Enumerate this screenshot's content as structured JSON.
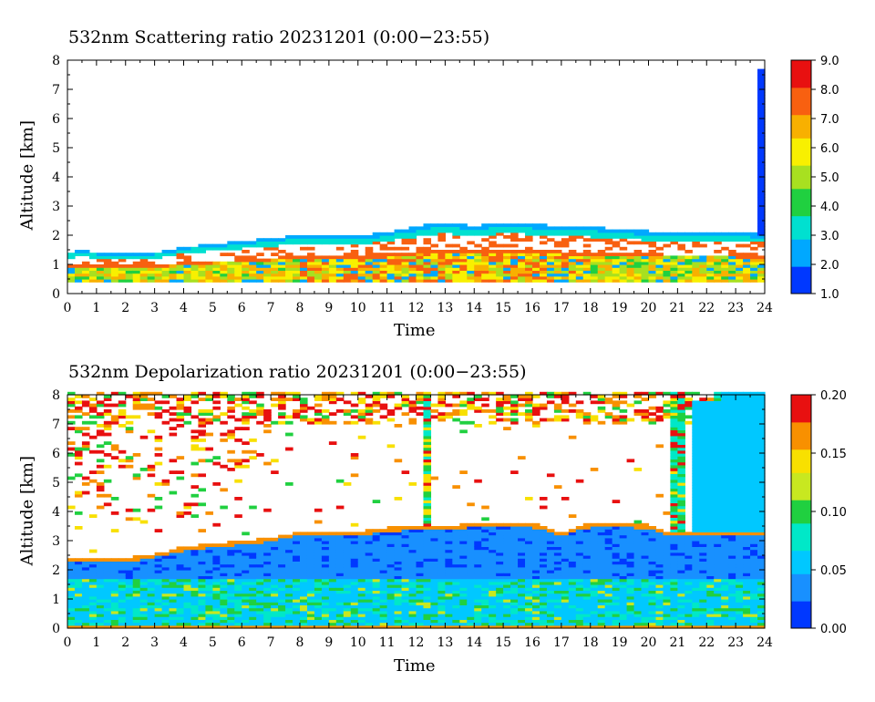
{
  "panels": [
    {
      "title": "532nm Scattering ratio  20231201 (0:00−23:55)",
      "xlabel": "Time",
      "ylabel": "Altitude [km]"
    },
    {
      "title": "532nm Depolarization ratio  20231201 (0:00−23:55)",
      "xlabel": "Time",
      "ylabel": "Altitude [km]"
    }
  ],
  "chart_data": [
    {
      "type": "heatmap",
      "title": "532nm Scattering ratio  20231201 (0:00−23:55)",
      "xlabel": "Time",
      "ylabel": "Altitude [km]",
      "xlim": [
        0,
        24
      ],
      "ylim": [
        0,
        8
      ],
      "xticks": [
        "0",
        "1",
        "2",
        "3",
        "4",
        "5",
        "6",
        "7",
        "8",
        "9",
        "10",
        "11",
        "12",
        "13",
        "14",
        "15",
        "16",
        "17",
        "18",
        "19",
        "20",
        "21",
        "22",
        "23",
        "24"
      ],
      "yticks": [
        "0",
        "1",
        "2",
        "3",
        "4",
        "5",
        "6",
        "7",
        "8"
      ],
      "colorbar": {
        "min": 1.0,
        "max": 9.0,
        "ticks": [
          "1.0",
          "2.0",
          "3.0",
          "4.0",
          "5.0",
          "6.0",
          "7.0",
          "8.0",
          "9.0"
        ]
      },
      "colors": [
        "#0038ff",
        "#00a8ff",
        "#00e0d0",
        "#20d040",
        "#a8e020",
        "#f8f000",
        "#f8b000",
        "#f86010",
        "#e81010"
      ],
      "features": {
        "cloud_top_km": [
          [
            0,
            1.4
          ],
          [
            0.5,
            1.5
          ],
          [
            1,
            1.4
          ],
          [
            3,
            1.4
          ],
          [
            4,
            1.6
          ],
          [
            6,
            1.8
          ],
          [
            8,
            2.0
          ],
          [
            10,
            2.0
          ],
          [
            11,
            2.1
          ],
          [
            12,
            2.3
          ],
          [
            13,
            2.45
          ],
          [
            14,
            2.3
          ],
          [
            15,
            2.45
          ],
          [
            16,
            2.4
          ],
          [
            17,
            2.3
          ],
          [
            18,
            2.3
          ],
          [
            19,
            2.2
          ],
          [
            20,
            2.15
          ],
          [
            21,
            2.1
          ],
          [
            22,
            2.1
          ],
          [
            23,
            2.1
          ],
          [
            23.8,
            2.05
          ]
        ],
        "layer_bottom_km": 0.4,
        "late_column": {
          "time": 23.85,
          "top_km": 7.7
        }
      }
    },
    {
      "type": "heatmap",
      "title": "532nm Depolarization ratio  20231201 (0:00−23:55)",
      "xlabel": "Time",
      "ylabel": "Altitude [km]",
      "xlim": [
        0,
        24
      ],
      "ylim": [
        0,
        8
      ],
      "xticks": [
        "0",
        "1",
        "2",
        "3",
        "4",
        "5",
        "6",
        "7",
        "8",
        "9",
        "10",
        "11",
        "12",
        "13",
        "14",
        "15",
        "16",
        "17",
        "18",
        "19",
        "20",
        "21",
        "22",
        "23",
        "24"
      ],
      "yticks": [
        "0",
        "1",
        "2",
        "3",
        "4",
        "5",
        "6",
        "7",
        "8"
      ],
      "colorbar": {
        "min": 0.0,
        "max": 0.2,
        "ticks": [
          "0.00",
          "0.05",
          "0.10",
          "0.15",
          "0.20"
        ]
      },
      "colors": [
        "#0038ff",
        "#1890ff",
        "#00c8ff",
        "#00e8c8",
        "#20d040",
        "#c8e820",
        "#f8e000",
        "#f89000",
        "#e81010"
      ],
      "features": {
        "layer_top_km": [
          [
            0,
            2.4
          ],
          [
            1,
            2.4
          ],
          [
            2,
            2.4
          ],
          [
            3,
            2.55
          ],
          [
            4,
            2.8
          ],
          [
            5,
            2.9
          ],
          [
            6,
            3.0
          ],
          [
            7,
            3.1
          ],
          [
            8,
            3.3
          ],
          [
            9,
            3.35
          ],
          [
            10,
            3.3
          ],
          [
            11,
            3.45
          ],
          [
            12,
            3.5
          ],
          [
            13,
            3.5
          ],
          [
            14,
            3.6
          ],
          [
            15,
            3.6
          ],
          [
            16,
            3.6
          ],
          [
            17,
            3.3
          ],
          [
            18,
            3.6
          ],
          [
            19,
            3.6
          ],
          [
            20,
            3.55
          ],
          [
            20.6,
            3.3
          ],
          [
            21,
            3.3
          ],
          [
            22,
            3.3
          ],
          [
            23,
            3.3
          ],
          [
            24,
            3.3
          ]
        ],
        "layer_bottom_km": 1.7,
        "columns": [
          12.4,
          21.0,
          22.5
        ]
      }
    }
  ]
}
